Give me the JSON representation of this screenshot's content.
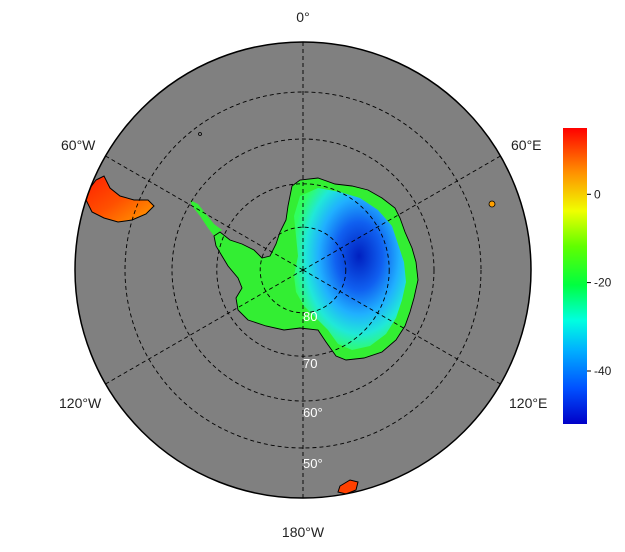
{
  "map": {
    "projection": "south-polar-stereographic",
    "ocean_color": "#808080",
    "graticule": {
      "latitudes": [
        80,
        70,
        60,
        50
      ],
      "longitudes": [
        0,
        60,
        120,
        180,
        -120,
        -60
      ],
      "style": "dashed"
    },
    "lon_labels": {
      "top": "0°",
      "upper_right": "60°E",
      "lower_right": "120°E",
      "bottom": "180°W",
      "lower_left": "120°W",
      "upper_left": "60°W"
    },
    "lat_labels": [
      "80",
      "70",
      "60°",
      "50°"
    ]
  },
  "colorbar": {
    "ticks": [
      "0",
      "-20",
      "-40"
    ],
    "tick_values": [
      0,
      -20,
      -40
    ],
    "range": [
      -52,
      15
    ],
    "colors": [
      "#0000cc",
      "#0060ff",
      "#00e0ff",
      "#00ff60",
      "#40ff00",
      "#e0ff00",
      "#ff8000",
      "#ff0000"
    ]
  }
}
